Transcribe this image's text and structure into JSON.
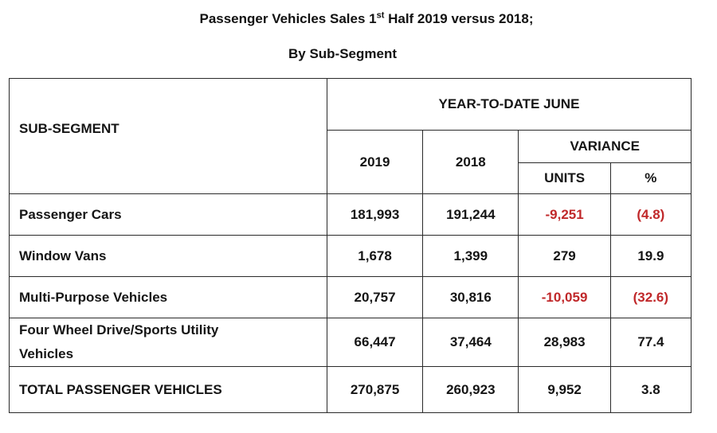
{
  "title": {
    "line1_pre": "Passenger Vehicles Sales 1",
    "line1_sup": "st",
    "line1_post": " Half 2019 versus 2018;",
    "line2": "By Sub-Segment"
  },
  "table": {
    "headers": {
      "sub_segment": "SUB-SEGMENT",
      "ytd": "YEAR-TO-DATE JUNE",
      "y2019": "2019",
      "y2018": "2018",
      "variance": "VARIANCE",
      "units": "UNITS",
      "pct": "%"
    },
    "rows": [
      {
        "segment": "Passenger  Cars",
        "y2019": "181,993",
        "y2018": "191,244",
        "units": "-9,251",
        "pct": "(4.8)",
        "negative": true
      },
      {
        "segment": "Window Vans",
        "y2019": "1,678",
        "y2018": "1,399",
        "units": "279",
        "pct": "19.9",
        "negative": false
      },
      {
        "segment": "Multi-Purpose Vehicles",
        "y2019": "20,757",
        "y2018": "30,816",
        "units": "-10,059",
        "pct": "(32.6)",
        "negative": true
      },
      {
        "segment": "Four Wheel Drive/Sports Utility Vehicles",
        "y2019": "66,447",
        "y2018": "37,464",
        "units": "28,983",
        "pct": "77.4",
        "negative": false
      },
      {
        "segment": "TOTAL PASSENGER VEHICLES",
        "y2019": "270,875",
        "y2018": "260,923",
        "units": "9,952",
        "pct": "3.8",
        "negative": false
      }
    ]
  },
  "colors": {
    "negative": "#c0282a",
    "text": "#151515",
    "border": "#2a2a2a"
  }
}
